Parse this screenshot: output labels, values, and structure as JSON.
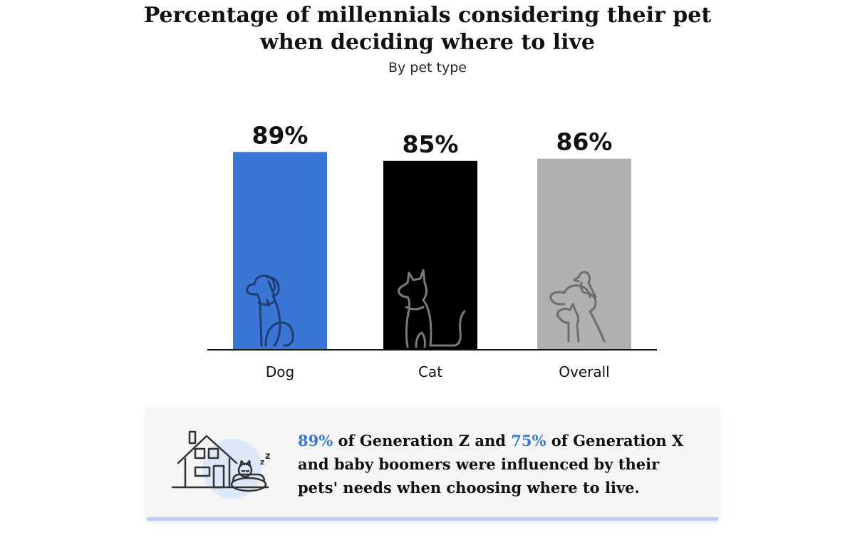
{
  "colors": {
    "dog": "#3a76d6",
    "cat": "#000000",
    "overall": "#b0b0b0",
    "highlight": "#3a78d6",
    "accent_border": "#b9d0f2"
  },
  "chart_data": {
    "type": "bar",
    "title": "Percentage of millennials considering their pet when deciding where to live",
    "title_lines": [
      "Percentage of millennials considering their pet",
      "when deciding where to live"
    ],
    "subtitle": "By pet type",
    "categories": [
      "Dog",
      "Cat",
      "Overall"
    ],
    "values": [
      89,
      85,
      86
    ],
    "value_labels": [
      "89%",
      "85%",
      "86%"
    ],
    "bar_colors": [
      "#3a76d6",
      "#000000",
      "#b0b0b0"
    ],
    "bar_icons": [
      "dog-icon",
      "cat-icon",
      "pets-group-icon"
    ],
    "ylim": [
      0,
      100
    ],
    "xlabel": "",
    "ylabel": "",
    "grid": false,
    "legend": "none"
  },
  "note": {
    "stat1": "89%",
    "text1": " of Generation Z and ",
    "stat2": "75%",
    "text2": " of Generation X and baby boomers were influenced by their pets' needs when choosing where to live.",
    "icon": "house-with-sleeping-pet-icon"
  }
}
